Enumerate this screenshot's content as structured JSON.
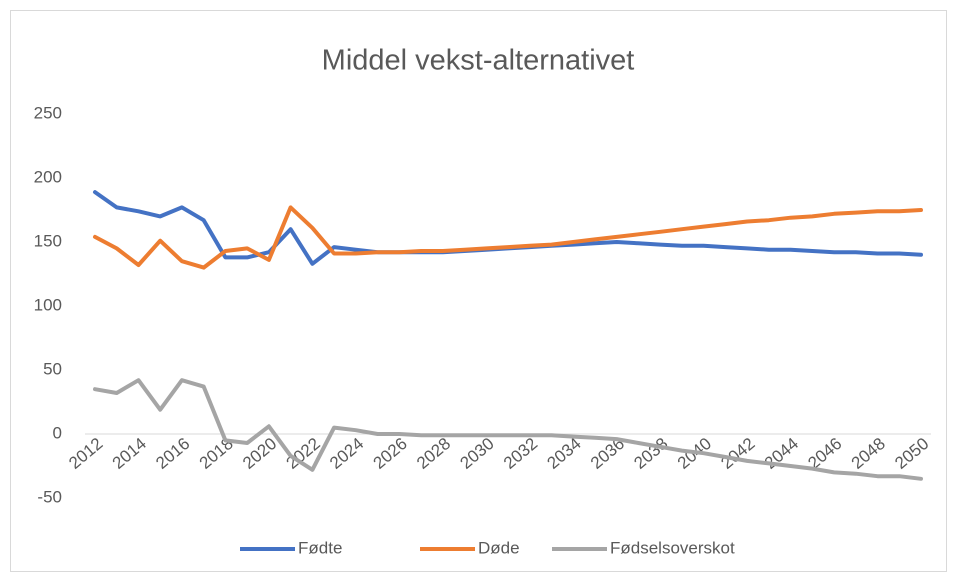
{
  "chart_data": {
    "type": "line",
    "title": "Middel vekst-alternativet",
    "categories": [
      "2012",
      null,
      "2014",
      null,
      "2016",
      null,
      "2018",
      null,
      "2020",
      null,
      "2022",
      null,
      "2024",
      null,
      "2026",
      null,
      "2028",
      null,
      "2030",
      null,
      "2032",
      null,
      "2034",
      null,
      "2036",
      null,
      "2038",
      null,
      "2040",
      null,
      "2042",
      null,
      "2044",
      null,
      "2046",
      null,
      "2048",
      null,
      "2050"
    ],
    "series": [
      {
        "name": "Fødte",
        "color": "#4472c4",
        "values": [
          189,
          177,
          174,
          170,
          177,
          167,
          138,
          138,
          142,
          160,
          133,
          146,
          144,
          142,
          142,
          142,
          142,
          143,
          144,
          145,
          146,
          147,
          148,
          149,
          150,
          149,
          148,
          147,
          147,
          146,
          145,
          144,
          144,
          143,
          142,
          142,
          141,
          141,
          140
        ]
      },
      {
        "name": "Døde",
        "color": "#ed7d31",
        "values": [
          154,
          145,
          132,
          151,
          135,
          130,
          143,
          145,
          136,
          177,
          161,
          141,
          141,
          142,
          142,
          143,
          143,
          144,
          145,
          146,
          147,
          148,
          150,
          152,
          154,
          156,
          158,
          160,
          162,
          164,
          166,
          167,
          169,
          170,
          172,
          173,
          174,
          174,
          175
        ]
      },
      {
        "name": "Fødselsoverskot",
        "color": "#a5a5a5",
        "values": [
          35,
          32,
          42,
          19,
          42,
          37,
          -5,
          -7,
          6,
          -17,
          -28,
          5,
          3,
          0,
          0,
          -1,
          -1,
          -1,
          -1,
          -1,
          -1,
          -1,
          -2,
          -3,
          -4,
          -7,
          -10,
          -13,
          -15,
          -18,
          -21,
          -23,
          -25,
          -27,
          -30,
          -31,
          -33,
          -33,
          -35
        ]
      }
    ],
    "ylim": [
      -50,
      250
    ],
    "yticks": [
      -50,
      0,
      50,
      100,
      150,
      200,
      250
    ],
    "grid": false,
    "legend": "bottom"
  }
}
